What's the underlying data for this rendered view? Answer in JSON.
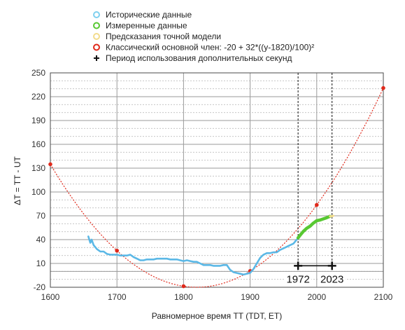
{
  "chart_data": {
    "type": "line",
    "xlabel": "Равномерное время TT (TDT, ET)",
    "ylabel": "ΔT = TT - UT",
    "xlim": [
      1600,
      2100
    ],
    "ylim": [
      -20,
      250
    ],
    "x_ticks": [
      1600,
      1700,
      1800,
      1900,
      2000,
      2100
    ],
    "y_ticks": [
      -20,
      10,
      40,
      70,
      100,
      130,
      160,
      190,
      220,
      250
    ],
    "grid": true,
    "legend_placement": "top-left",
    "legend": [
      {
        "label": "Исторические данные",
        "marker": "open-circle",
        "color": "#7fd0ef"
      },
      {
        "label": "Измеренные данные",
        "marker": "open-circle",
        "color": "#58c832"
      },
      {
        "label": "Предсказания точной модели",
        "marker": "open-circle",
        "color": "#f3dc8c"
      },
      {
        "label": "Классический основной член: -20 + 32*((y-1820)/100)²",
        "marker": "open-circle",
        "color": "#e0291b"
      },
      {
        "label": "Период использования дополнительных секунд",
        "marker": "plus",
        "color": "#111111"
      }
    ],
    "series": [
      {
        "name": "Исторические данные",
        "color": "#5bb8e6",
        "x": [
          1657,
          1660,
          1662,
          1665,
          1670,
          1675,
          1680,
          1685,
          1690,
          1695,
          1700,
          1705,
          1710,
          1715,
          1720,
          1725,
          1730,
          1735,
          1740,
          1745,
          1750,
          1755,
          1760,
          1765,
          1770,
          1775,
          1780,
          1785,
          1790,
          1795,
          1800,
          1805,
          1810,
          1815,
          1820,
          1825,
          1830,
          1835,
          1840,
          1845,
          1850,
          1855,
          1860,
          1865,
          1870,
          1875,
          1880,
          1885,
          1890,
          1895,
          1900,
          1905,
          1910,
          1915,
          1920,
          1925,
          1930,
          1935,
          1940,
          1945,
          1950,
          1955,
          1960,
          1965,
          1970
        ],
        "y": [
          44,
          36,
          40,
          33,
          28,
          25,
          25,
          22,
          21,
          21,
          21,
          20,
          20,
          20,
          21,
          18,
          16,
          14,
          14,
          15,
          15,
          15,
          16,
          16,
          16,
          16,
          15,
          15,
          15,
          14,
          13,
          14,
          13,
          12,
          12,
          10,
          8,
          8,
          8,
          7,
          7,
          7,
          8,
          8,
          2,
          -1,
          -2,
          -3,
          -4,
          -3,
          -2,
          3,
          10,
          17,
          21,
          23,
          23,
          24,
          24,
          27,
          29,
          31,
          33,
          35,
          40
        ]
      },
      {
        "name": "Измеренные данные",
        "color": "#58c832",
        "x": [
          1972,
          1975,
          1980,
          1985,
          1990,
          1995,
          2000,
          2005,
          2010,
          2015,
          2020
        ],
        "y": [
          42.2,
          45.5,
          50.5,
          54.3,
          56.9,
          60.8,
          63.8,
          64.7,
          66.1,
          67.6,
          69.4
        ]
      },
      {
        "name": "Предсказания точной модели",
        "color": "#f3dc8c",
        "x": [
          2020,
          2023,
          2025
        ],
        "y": [
          69.4,
          69.5,
          70.0
        ]
      },
      {
        "name": "Классический основной член: -20 + 32*((y-1820)/100)²",
        "color": "#e0291b",
        "formula": "-20 + 32*((y-1820)/100)^2",
        "points": [
          [
            1600,
            134.9
          ],
          [
            1700,
            26.1
          ],
          [
            1800,
            -18.7
          ],
          [
            1900,
            0.5
          ],
          [
            2000,
            83.7
          ],
          [
            2100,
            230.9
          ]
        ]
      }
    ],
    "leap_second_period": {
      "start": 1972,
      "end": 2023,
      "y": 0,
      "labels": [
        "1972",
        "2023"
      ]
    }
  }
}
